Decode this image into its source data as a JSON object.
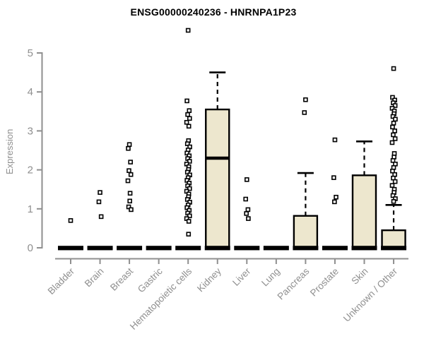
{
  "chart_data": {
    "type": "boxplot",
    "title": "ENSG00000240236 - HNRNPA1P23",
    "ylabel": "Expression",
    "xlabel": "",
    "ylim": [
      0,
      5.6
    ],
    "yticks": [
      0,
      1,
      2,
      3,
      4,
      5
    ],
    "grid": "off",
    "legend": "none",
    "categories": [
      "Bladder",
      "Brain",
      "Breast",
      "Gastric",
      "Hematopoietic cells",
      "Kidney",
      "Liver",
      "Lung",
      "Pancreas",
      "Prostate",
      "Skin",
      "Unknown / Other"
    ],
    "series": [
      {
        "label": "Bladder",
        "q1": 0,
        "median": 0,
        "q3": 0,
        "whisker_low": 0,
        "whisker_high": 0,
        "outliers": [
          0.7
        ]
      },
      {
        "label": "Brain",
        "q1": 0,
        "median": 0,
        "q3": 0,
        "whisker_low": 0,
        "whisker_high": 0,
        "outliers": [
          1.42,
          1.18,
          0.8
        ]
      },
      {
        "label": "Breast",
        "q1": 0,
        "median": 0,
        "q3": 0,
        "whisker_low": 0,
        "whisker_high": 0,
        "outliers": [
          2.65,
          2.55,
          2.2,
          1.98,
          1.88,
          1.72,
          1.4,
          1.2,
          1.05,
          0.98
        ]
      },
      {
        "label": "Gastric",
        "q1": 0,
        "median": 0,
        "q3": 0,
        "whisker_low": 0,
        "whisker_high": 0,
        "outliers": []
      },
      {
        "label": "Hematopoietic cells",
        "q1": 0,
        "median": 0,
        "q3": 0,
        "whisker_low": 0,
        "whisker_high": 0,
        "outliers": [
          5.58,
          3.77,
          3.52,
          3.42,
          3.32,
          3.22,
          3.12,
          2.75,
          2.67,
          2.59,
          2.51,
          2.43,
          2.36,
          2.29,
          2.22,
          2.15,
          2.08,
          2.01,
          1.94,
          1.87,
          1.8,
          1.73,
          1.66,
          1.59,
          1.52,
          1.45,
          1.38,
          1.31,
          1.24,
          1.17,
          1.1,
          1.03,
          0.96,
          0.89,
          0.82,
          0.75,
          0.68,
          0.35
        ]
      },
      {
        "label": "Kidney",
        "q1": 0,
        "median": 2.3,
        "q3": 3.55,
        "whisker_low": 0,
        "whisker_high": 4.5,
        "outliers": []
      },
      {
        "label": "Liver",
        "q1": 0,
        "median": 0,
        "q3": 0,
        "whisker_low": 0,
        "whisker_high": 0,
        "outliers": [
          1.75,
          1.25,
          0.98,
          0.88,
          0.75
        ]
      },
      {
        "label": "Lung",
        "q1": 0,
        "median": 0,
        "q3": 0,
        "whisker_low": 0,
        "whisker_high": 0,
        "outliers": []
      },
      {
        "label": "Pancreas",
        "q1": 0,
        "median": 0,
        "q3": 0.82,
        "whisker_low": 0,
        "whisker_high": 1.92,
        "outliers": [
          3.8,
          3.47
        ]
      },
      {
        "label": "Prostate",
        "q1": 0,
        "median": 0,
        "q3": 0,
        "whisker_low": 0,
        "whisker_high": 0,
        "outliers": [
          2.77,
          1.8,
          1.3,
          1.18
        ]
      },
      {
        "label": "Skin",
        "q1": 0,
        "median": 0,
        "q3": 1.86,
        "whisker_low": 0,
        "whisker_high": 2.73,
        "outliers": []
      },
      {
        "label": "Unknown / Other",
        "q1": 0,
        "median": 0,
        "q3": 0.45,
        "whisker_low": 0,
        "whisker_high": 1.1,
        "outliers": [
          4.6,
          3.86,
          3.79,
          3.72,
          3.65,
          3.58,
          3.51,
          3.44,
          3.37,
          3.3,
          3.2,
          3.1,
          3.0,
          2.9,
          2.8,
          2.7,
          2.42,
          2.33,
          2.24,
          2.15,
          2.06,
          1.97,
          1.88,
          1.79,
          1.7,
          1.6,
          1.5,
          1.42,
          1.34,
          1.26,
          1.19
        ]
      }
    ],
    "colors": {
      "box_fill": "#ede7ce",
      "box_border": "#000000",
      "median": "#000000",
      "whisker": "#000000",
      "axis": "#8f8f8f",
      "tick_label": "#8f8f8f",
      "title": "#000000",
      "background": "#ffffff"
    }
  }
}
